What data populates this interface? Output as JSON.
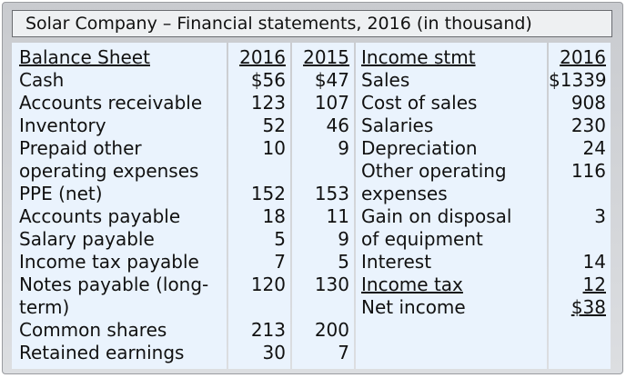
{
  "title": "Solar Company – Financial statements, 2016 (in thousand)",
  "balance_sheet": {
    "header": "Balance Sheet",
    "col_2016": "2016",
    "col_2015": "2015",
    "rows": [
      {
        "label": "Cash",
        "v2016": "$56",
        "v2015": "$47"
      },
      {
        "label": "Accounts receivable",
        "v2016": "123",
        "v2015": "107"
      },
      {
        "label": "Inventory",
        "v2016": "52",
        "v2015": "46"
      },
      {
        "label1": "Prepaid other",
        "label2": "operating expenses",
        "v2016": "10",
        "v2015": "9"
      },
      {
        "label": "PPE (net)",
        "v2016": "152",
        "v2015": "153"
      },
      {
        "label": "Accounts payable",
        "v2016": "18",
        "v2015": "11"
      },
      {
        "label": "Salary payable",
        "v2016": "5",
        "v2015": "9"
      },
      {
        "label": "Income tax payable",
        "v2016": "7",
        "v2015": "5"
      },
      {
        "label1": "Notes payable (long-",
        "label2": "term)",
        "v2016": "120",
        "v2015": "130"
      },
      {
        "label": "Common shares",
        "v2016": "213",
        "v2015": "200"
      },
      {
        "label": "Retained earnings",
        "v2016": "30",
        "v2015": "7"
      }
    ]
  },
  "income_statement": {
    "header": "Income stmt",
    "col_2016": "2016",
    "rows": [
      {
        "label": "Sales",
        "value": "$1339"
      },
      {
        "label": "Cost of sales",
        "value": "908"
      },
      {
        "label": "Salaries",
        "value": "230"
      },
      {
        "label": "Depreciation",
        "value": "24"
      },
      {
        "label1": "Other operating",
        "label2": "expenses",
        "value": "116"
      },
      {
        "label1": "Gain on disposal",
        "label2": "of equipment",
        "value": "3"
      },
      {
        "label": "Interest",
        "value": "14"
      },
      {
        "label": "Income tax",
        "value": "12"
      },
      {
        "label": "Net income",
        "value": "$38"
      }
    ]
  }
}
